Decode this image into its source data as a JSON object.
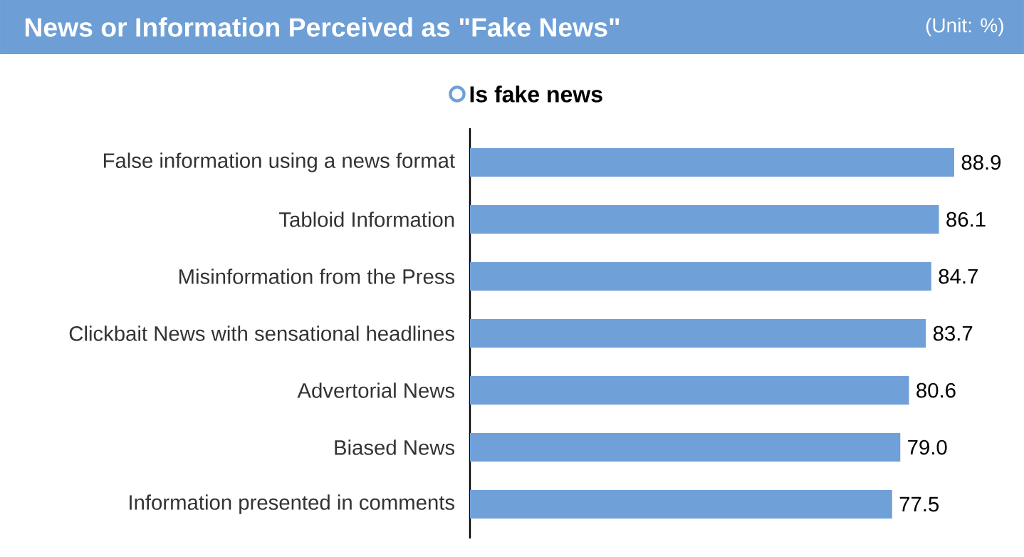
{
  "chart_data": {
    "type": "bar",
    "orientation": "horizontal",
    "title": "News or Information Perceived as \"Fake News\"",
    "subtitle": "(Unit: %)",
    "categories": [
      "False information using a news format",
      "Tabloid Information",
      "Misinformation from the Press",
      "Clickbait News with sensational headlines",
      "Advertorial News",
      "Biased News",
      "Information presented in comments"
    ],
    "series": [
      {
        "name": "Is fake news",
        "color": "#6fa0d8",
        "values": [
          88.9,
          86.1,
          84.7,
          83.7,
          80.6,
          79.0,
          77.5
        ],
        "value_labels": [
          "88.9",
          "86.1",
          "84.7",
          "83.7",
          "80.6",
          "79.0",
          "77.5"
        ]
      }
    ],
    "legend": "top"
  }
}
